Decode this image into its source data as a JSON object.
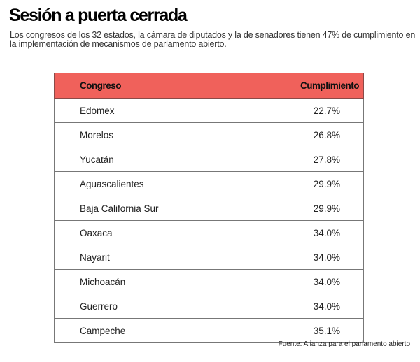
{
  "title": "Sesión a puerta cerrada",
  "subtitle": "Los congresos de los 32 estados, la cámara de diputados y la de senadores tienen 47% de cumplimiento en la implementación de mecanismos de parlamento abierto.",
  "source": "Fuente: Alianza para el parlamento abierto",
  "colors": {
    "header": "#f0615b"
  },
  "chart_data": {
    "type": "table",
    "columns": [
      "Congreso",
      "Cumplimiento"
    ],
    "rows": [
      [
        "Edomex",
        "22.7%"
      ],
      [
        "Morelos",
        "26.8%"
      ],
      [
        "Yucatán",
        "27.8%"
      ],
      [
        "Aguascalientes",
        "29.9%"
      ],
      [
        "Baja California Sur",
        "29.9%"
      ],
      [
        "Oaxaca",
        "34.0%"
      ],
      [
        "Nayarit",
        "34.0%"
      ],
      [
        "Michoacán",
        "34.0%"
      ],
      [
        "Guerrero",
        "34.0%"
      ],
      [
        "Campeche",
        "35.1%"
      ]
    ]
  }
}
